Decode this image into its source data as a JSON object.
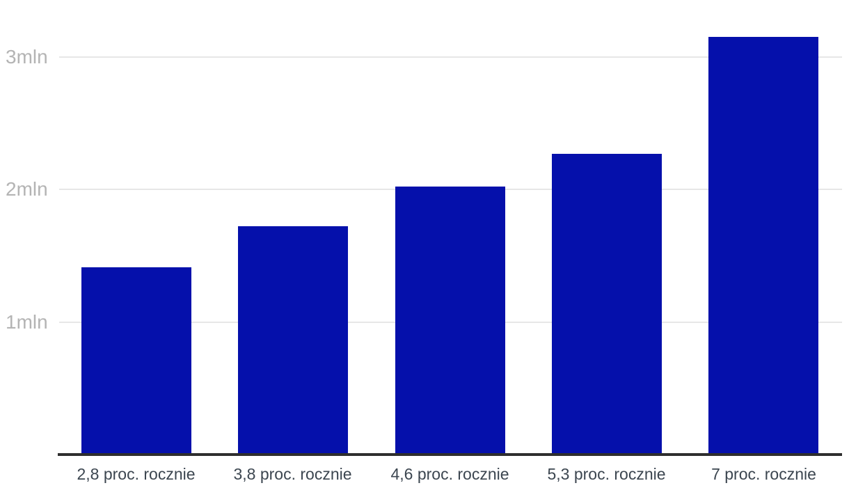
{
  "chart_data": {
    "type": "bar",
    "title": "",
    "categories": [
      "2,8 proc. rocznie",
      "3,8 proc. rocznie",
      "4,6 proc. rocznie",
      "5,3 proc. rocznie",
      "7 proc. rocznie"
    ],
    "values": [
      1.41,
      1.72,
      2.02,
      2.27,
      3.15
    ],
    "unit": "mln",
    "series_name": "",
    "xlabel": "",
    "ylabel": "",
    "ylim": [
      0,
      3.43
    ],
    "y_ticks": [
      {
        "value": 1,
        "label": "1mln"
      },
      {
        "value": 2,
        "label": "2mln"
      },
      {
        "value": 3,
        "label": "3mln"
      }
    ],
    "grid": "horizontal",
    "legend": "none",
    "colors": {
      "bar": "#0510ab",
      "gridline": "#e7e7e7",
      "axis_line": "#2e2e2e",
      "ytick_label": "#b4b4b4",
      "category_label": "#3c4650",
      "background": "#ffffff"
    }
  }
}
